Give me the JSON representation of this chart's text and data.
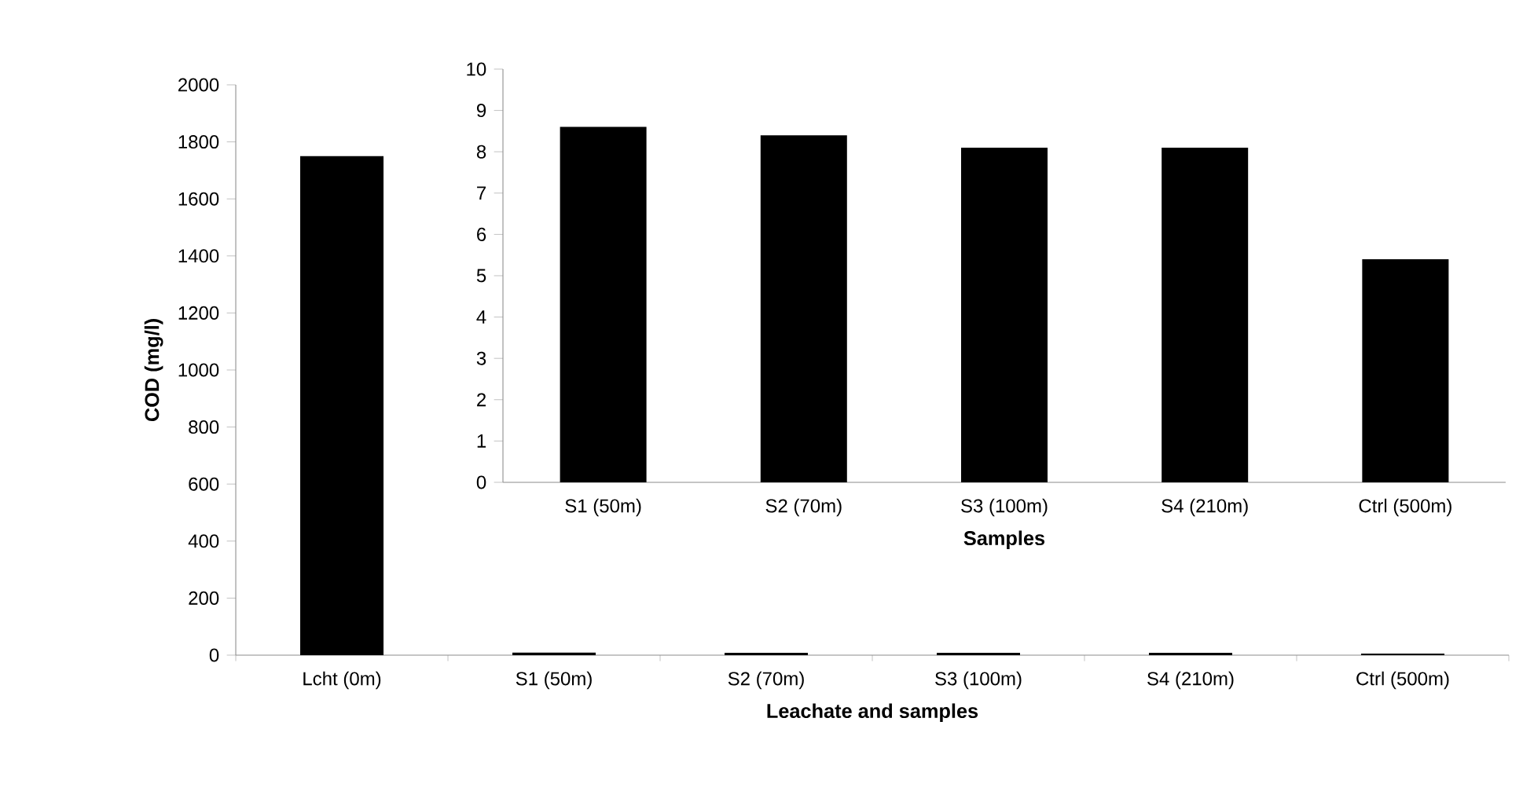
{
  "chart_data": [
    {
      "type": "bar",
      "xlabel": "Leachate and samples",
      "ylabel": "COD (mg/l)",
      "categories": [
        "Lcht (0m)",
        "S1 (50m)",
        "S2 (70m)",
        "S3 (100m)",
        "S4 (210m)",
        "Ctrl (500m)"
      ],
      "values": [
        1750,
        8.6,
        8.4,
        8.1,
        8.1,
        5.4
      ],
      "color": "#000000",
      "ylim": [
        0,
        2000
      ],
      "yticks": [
        0,
        200,
        400,
        600,
        800,
        1000,
        1200,
        1400,
        1600,
        1800,
        2000
      ]
    },
    {
      "type": "bar",
      "xlabel": "Samples",
      "categories": [
        "S1 (50m)",
        "S2 (70m)",
        "S3 (100m)",
        "S4 (210m)",
        "Ctrl (500m)"
      ],
      "values": [
        8.6,
        8.4,
        8.1,
        8.1,
        5.4
      ],
      "color": "#000000",
      "ylim": [
        0,
        10
      ],
      "yticks": [
        0,
        1,
        2,
        3,
        4,
        5,
        6,
        7,
        8,
        9,
        10
      ]
    }
  ]
}
